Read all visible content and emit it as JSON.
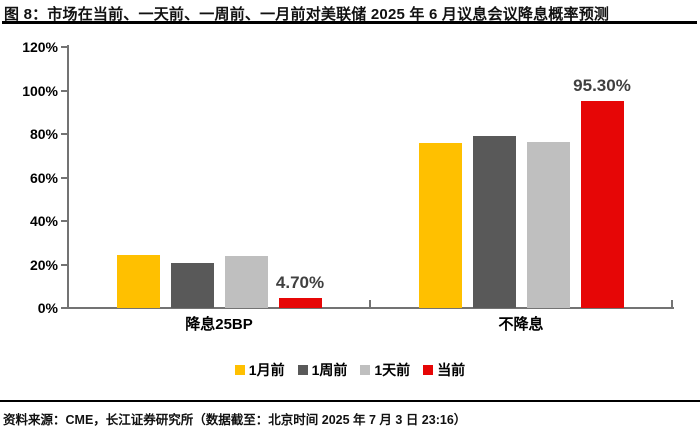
{
  "header": {
    "title": "图 8：市场在当前、一天前、一周前、一月前对美联储 2025 年 6 月议息会议降息概率预测"
  },
  "footer": {
    "source": "资料来源：CME，长江证券研究所（数据截至：北京时间 2025 年 7 月 3 日 23:16）"
  },
  "colors": {
    "axis": "#737373",
    "rule": "#000000",
    "value_label": "#404040"
  },
  "chart_data": {
    "type": "bar",
    "title": "市场在当前、一天前、一周前、一月前对美联储 2025 年 6 月议息会议降息概率预测",
    "categories": [
      "降息25BP",
      "不降息"
    ],
    "series": [
      {
        "name": "1月前",
        "color": "#FFC000",
        "values": [
          24.2,
          75.8
        ]
      },
      {
        "name": "1周前",
        "color": "#595959",
        "values": [
          20.9,
          79.1
        ]
      },
      {
        "name": "1天前",
        "color": "#BFBFBF",
        "values": [
          23.8,
          76.2
        ]
      },
      {
        "name": "当前",
        "color": "#E60606",
        "values": [
          4.7,
          95.3
        ],
        "labels": [
          "4.70%",
          "95.30%"
        ]
      }
    ],
    "xlabel": "",
    "ylabel": "",
    "ylim": [
      0,
      120
    ],
    "ytick_step": 20,
    "ytick_suffix": "%",
    "grid": false,
    "legend_position": "bottom"
  }
}
